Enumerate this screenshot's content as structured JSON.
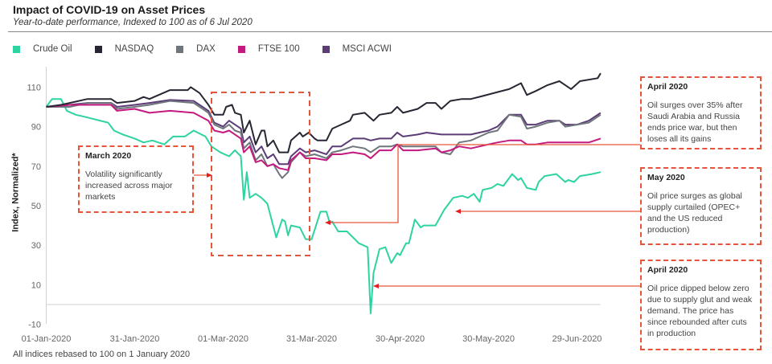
{
  "header": {
    "title": "Impact of COVID-19 on Asset Prices",
    "subtitle": "Year-to-date performance, Indexed to 100 as of 6 Jul 2020"
  },
  "footnote": "All indices rebased to 100 on 1 January  2020",
  "chart_data": {
    "type": "line",
    "title": "Impact of COVID-19 on Asset Prices",
    "xlabel": "",
    "ylabel": "Index, Normalized*",
    "x_unit": "days since 01-Jan-2020",
    "ylim": [
      -10,
      120
    ],
    "yticks": [
      "110",
      "90",
      "70",
      "50",
      "30",
      "10",
      "-10"
    ],
    "ytick_values": [
      110,
      90,
      70,
      50,
      30,
      10,
      -10
    ],
    "xticks": [
      "01-Jan-2020",
      "31-Jan-2020",
      "01-Mar-2020",
      "31-Mar-2020",
      "30-Apr-2020",
      "30-May-2020",
      "29-Jun-2020"
    ],
    "xtick_values": [
      0,
      30,
      60,
      90,
      120,
      150,
      180
    ],
    "legend_position": "top-left",
    "series": [
      {
        "name": "Crude Oil",
        "color": "#2ed3a2",
        "points": [
          [
            0,
            100
          ],
          [
            2,
            104
          ],
          [
            5,
            104
          ],
          [
            7,
            98
          ],
          [
            10,
            96
          ],
          [
            13,
            95
          ],
          [
            21,
            92
          ],
          [
            23,
            88
          ],
          [
            26,
            86
          ],
          [
            30,
            84
          ],
          [
            33,
            82
          ],
          [
            36,
            83
          ],
          [
            40,
            81
          ],
          [
            43,
            85
          ],
          [
            47,
            85
          ],
          [
            50,
            88
          ],
          [
            54,
            85
          ],
          [
            56,
            80
          ],
          [
            59,
            77
          ],
          [
            62,
            75
          ],
          [
            64,
            78
          ],
          [
            66,
            75
          ],
          [
            67,
            53
          ],
          [
            68,
            67
          ],
          [
            69,
            54
          ],
          [
            71,
            56
          ],
          [
            73,
            54
          ],
          [
            75,
            51
          ],
          [
            78,
            34
          ],
          [
            80,
            43
          ],
          [
            81,
            42
          ],
          [
            82,
            35
          ],
          [
            83,
            40
          ],
          [
            86,
            39
          ],
          [
            88,
            33
          ],
          [
            90,
            33
          ],
          [
            93,
            47
          ],
          [
            95,
            47
          ],
          [
            96,
            42
          ],
          [
            97,
            42
          ],
          [
            99,
            37
          ],
          [
            102,
            37
          ],
          [
            106,
            31
          ],
          [
            109,
            29
          ],
          [
            110,
            -4.5
          ],
          [
            111,
            16
          ],
          [
            113,
            28
          ],
          [
            115,
            29
          ],
          [
            117,
            21
          ],
          [
            119,
            26
          ],
          [
            120,
            25
          ],
          [
            122,
            31
          ],
          [
            123,
            31
          ],
          [
            125,
            43
          ],
          [
            127,
            39
          ],
          [
            128,
            40
          ],
          [
            132,
            40
          ],
          [
            135,
            48
          ],
          [
            138,
            54
          ],
          [
            141,
            55
          ],
          [
            143,
            54
          ],
          [
            145,
            56
          ],
          [
            147,
            52
          ],
          [
            148,
            58
          ],
          [
            151,
            59
          ],
          [
            153,
            61
          ],
          [
            155,
            60
          ],
          [
            158,
            66
          ],
          [
            160,
            63
          ],
          [
            161,
            64
          ],
          [
            163,
            59
          ],
          [
            166,
            58
          ],
          [
            167,
            62
          ],
          [
            169,
            65
          ],
          [
            173,
            66
          ],
          [
            176,
            62
          ],
          [
            177,
            63
          ],
          [
            179,
            62
          ],
          [
            181,
            65
          ],
          [
            185,
            66
          ],
          [
            188,
            67
          ]
        ]
      },
      {
        "name": "NASDAQ",
        "color": "#272733",
        "points": [
          [
            0,
            100
          ],
          [
            5,
            101
          ],
          [
            8,
            102
          ],
          [
            14,
            104
          ],
          [
            22,
            104
          ],
          [
            24,
            102
          ],
          [
            30,
            103
          ],
          [
            33,
            105
          ],
          [
            35,
            104
          ],
          [
            42,
            108.5
          ],
          [
            48,
            108.5
          ],
          [
            49,
            110
          ],
          [
            52,
            107
          ],
          [
            55,
            101
          ],
          [
            57,
            96
          ],
          [
            60,
            96
          ],
          [
            61,
            100
          ],
          [
            63,
            101
          ],
          [
            64,
            97
          ],
          [
            66,
            96
          ],
          [
            67,
            87
          ],
          [
            69,
            93
          ],
          [
            71,
            81
          ],
          [
            73,
            88
          ],
          [
            74,
            88
          ],
          [
            75,
            80
          ],
          [
            77,
            83
          ],
          [
            79,
            77
          ],
          [
            82,
            77
          ],
          [
            83,
            83
          ],
          [
            86,
            87
          ],
          [
            87,
            85
          ],
          [
            89,
            87
          ],
          [
            91,
            84
          ],
          [
            92,
            83
          ],
          [
            95,
            83
          ],
          [
            97,
            89
          ],
          [
            100,
            91
          ],
          [
            103,
            93
          ],
          [
            104,
            96
          ],
          [
            108,
            97
          ],
          [
            111,
            93
          ],
          [
            113,
            96
          ],
          [
            117,
            97
          ],
          [
            119,
            100
          ],
          [
            121,
            97
          ],
          [
            126,
            99
          ],
          [
            129,
            102
          ],
          [
            132,
            102
          ],
          [
            134,
            99
          ],
          [
            137,
            103
          ],
          [
            141,
            104
          ],
          [
            144,
            104
          ],
          [
            148,
            105.5
          ],
          [
            153,
            107.5
          ],
          [
            157,
            109
          ],
          [
            161,
            112
          ],
          [
            163,
            106
          ],
          [
            166,
            108
          ],
          [
            170,
            111
          ],
          [
            174,
            113
          ],
          [
            176,
            111
          ],
          [
            178,
            109
          ],
          [
            181,
            113
          ],
          [
            187,
            114.5
          ],
          [
            188,
            117
          ]
        ]
      },
      {
        "name": "DAX",
        "color": "#6f767b",
        "points": [
          [
            0,
            100
          ],
          [
            8,
            100
          ],
          [
            14,
            102
          ],
          [
            22,
            102
          ],
          [
            24,
            99
          ],
          [
            30,
            100
          ],
          [
            35,
            101
          ],
          [
            42,
            103
          ],
          [
            50,
            102
          ],
          [
            55,
            97
          ],
          [
            57,
            91
          ],
          [
            60,
            89
          ],
          [
            62,
            91
          ],
          [
            64,
            88
          ],
          [
            66,
            87
          ],
          [
            67,
            79
          ],
          [
            69,
            82
          ],
          [
            71,
            73
          ],
          [
            73,
            76
          ],
          [
            75,
            70
          ],
          [
            77,
            71
          ],
          [
            79,
            66
          ],
          [
            80,
            64
          ],
          [
            82,
            67
          ],
          [
            83,
            72
          ],
          [
            86,
            77
          ],
          [
            88,
            75
          ],
          [
            91,
            76
          ],
          [
            95,
            74
          ],
          [
            97,
            77
          ],
          [
            100,
            78
          ],
          [
            104,
            80
          ],
          [
            108,
            79
          ],
          [
            110,
            77
          ],
          [
            113,
            80
          ],
          [
            117,
            80
          ],
          [
            119,
            81
          ],
          [
            121,
            80
          ],
          [
            126,
            80
          ],
          [
            132,
            80
          ],
          [
            134,
            77
          ],
          [
            137,
            76
          ],
          [
            140,
            82
          ],
          [
            144,
            83
          ],
          [
            150,
            87
          ],
          [
            153,
            88
          ],
          [
            157,
            96
          ],
          [
            161,
            95
          ],
          [
            163,
            89
          ],
          [
            166,
            90
          ],
          [
            170,
            92
          ],
          [
            174,
            93
          ],
          [
            176,
            90
          ],
          [
            180,
            91
          ],
          [
            184,
            92
          ],
          [
            188,
            96
          ]
        ]
      },
      {
        "name": "FTSE 100",
        "color": "#c41a80",
        "points": [
          [
            0,
            100
          ],
          [
            8,
            101
          ],
          [
            14,
            101
          ],
          [
            22,
            101
          ],
          [
            24,
            98
          ],
          [
            30,
            99
          ],
          [
            35,
            97
          ],
          [
            42,
            98
          ],
          [
            50,
            97
          ],
          [
            55,
            93
          ],
          [
            57,
            88
          ],
          [
            60,
            87
          ],
          [
            62,
            88
          ],
          [
            64,
            86
          ],
          [
            66,
            84
          ],
          [
            67,
            77
          ],
          [
            69,
            80
          ],
          [
            71,
            72
          ],
          [
            73,
            73
          ],
          [
            75,
            70
          ],
          [
            77,
            71
          ],
          [
            79,
            69
          ],
          [
            82,
            68
          ],
          [
            83,
            73
          ],
          [
            86,
            77
          ],
          [
            88,
            74
          ],
          [
            91,
            74
          ],
          [
            95,
            73
          ],
          [
            97,
            76
          ],
          [
            100,
            76
          ],
          [
            104,
            77
          ],
          [
            108,
            76
          ],
          [
            110,
            74
          ],
          [
            113,
            78
          ],
          [
            117,
            78
          ],
          [
            119,
            81
          ],
          [
            121,
            78
          ],
          [
            126,
            78
          ],
          [
            132,
            79
          ],
          [
            134,
            77
          ],
          [
            137,
            78
          ],
          [
            140,
            80
          ],
          [
            144,
            79
          ],
          [
            150,
            81
          ],
          [
            153,
            82
          ],
          [
            157,
            83
          ],
          [
            161,
            83
          ],
          [
            163,
            81
          ],
          [
            166,
            81
          ],
          [
            170,
            82
          ],
          [
            176,
            82
          ],
          [
            180,
            82
          ],
          [
            184,
            82
          ],
          [
            188,
            84
          ]
        ]
      },
      {
        "name": "MSCI ACWI",
        "color": "#5b3c76",
        "points": [
          [
            0,
            100
          ],
          [
            8,
            101
          ],
          [
            14,
            102
          ],
          [
            22,
            102
          ],
          [
            24,
            100
          ],
          [
            30,
            101
          ],
          [
            35,
            102
          ],
          [
            42,
            103.5
          ],
          [
            50,
            103
          ],
          [
            55,
            98
          ],
          [
            57,
            92
          ],
          [
            60,
            90
          ],
          [
            62,
            93
          ],
          [
            64,
            91
          ],
          [
            66,
            89
          ],
          [
            67,
            82
          ],
          [
            69,
            85
          ],
          [
            71,
            77
          ],
          [
            73,
            80
          ],
          [
            75,
            74
          ],
          [
            77,
            76
          ],
          [
            79,
            71
          ],
          [
            82,
            71
          ],
          [
            83,
            75
          ],
          [
            86,
            79
          ],
          [
            88,
            77
          ],
          [
            91,
            78
          ],
          [
            95,
            76
          ],
          [
            97,
            80
          ],
          [
            100,
            80
          ],
          [
            104,
            84
          ],
          [
            108,
            84
          ],
          [
            110,
            83
          ],
          [
            113,
            84
          ],
          [
            117,
            84
          ],
          [
            119,
            87
          ],
          [
            121,
            85
          ],
          [
            126,
            86
          ],
          [
            129,
            87
          ],
          [
            134,
            86
          ],
          [
            144,
            86
          ],
          [
            150,
            88
          ],
          [
            153,
            90
          ],
          [
            157,
            96
          ],
          [
            161,
            96
          ],
          [
            163,
            91
          ],
          [
            166,
            91
          ],
          [
            170,
            93
          ],
          [
            174,
            93
          ],
          [
            176,
            91
          ],
          [
            180,
            91
          ],
          [
            184,
            93
          ],
          [
            188,
            97
          ]
        ]
      }
    ],
    "annotations": [
      {
        "title": "March 2020",
        "text": "Volatility significantly increased across major markets"
      },
      {
        "title": "April 2020",
        "text": "Oil surges over 35%  after Saudi Arabia and Russia ends price war, but then loses all its gains"
      },
      {
        "title": "May 2020",
        "text": "Oil price surges as global supply curtailed (OPEC+ and the US reduced production)"
      },
      {
        "title": "April 2020",
        "text": "Oil price dipped below zero due to supply glut and weak demand. The price has since rebounded after cuts in production"
      }
    ]
  },
  "colors": {
    "annotation": "#e8543a"
  }
}
